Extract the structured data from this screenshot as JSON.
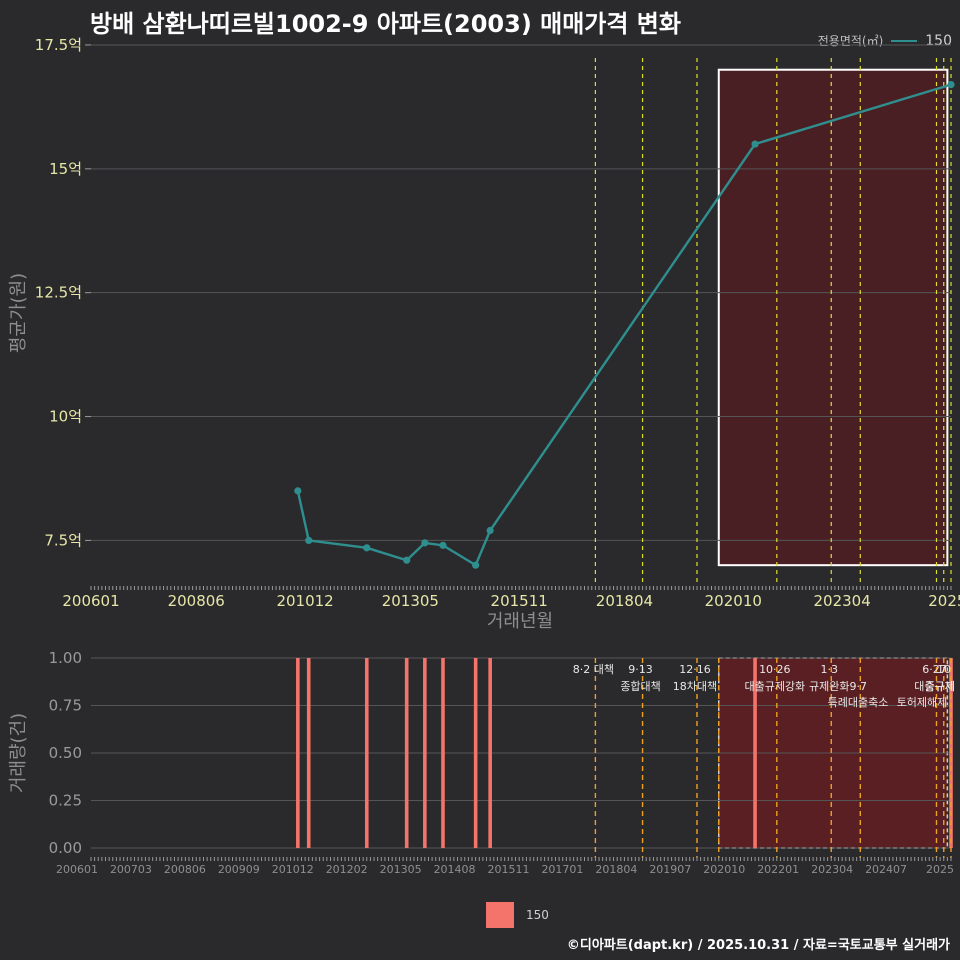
{
  "title": "방배 삼환나띠르빌1002-9 아파트(2003) 매매가격 변화",
  "legend": {
    "label": "전용면적(㎡)",
    "series_name": "150",
    "line_color": "#2f8f8f",
    "bar_color": "#f4736b"
  },
  "footer": "©디아파트(dapt.kr) / 2025.10.31 / 자료=국토교통부 실거래가",
  "chart_data": [
    {
      "type": "line",
      "title": "",
      "xlabel": "거래년월",
      "ylabel": "평균가(원)",
      "ylim": [
        6.6,
        17.6
      ],
      "yticks": [
        7.5,
        10,
        12.5,
        15,
        17.5
      ],
      "ytick_labels": [
        "7.5억",
        "10억",
        "12.5억",
        "15억",
        "17.5억"
      ],
      "xlim": [
        "2006-01",
        "2025-10"
      ],
      "xticks": [
        "2006-01",
        "2008-06",
        "2010-12",
        "2013-05",
        "2015-11",
        "2018-04",
        "2020-10",
        "2023-04",
        "2025-09"
      ],
      "xtick_labels": [
        "200601",
        "200806",
        "201012",
        "201305",
        "201511",
        "201804",
        "202010",
        "202304",
        "2025"
      ],
      "series": [
        {
          "name": "150",
          "x": [
            "2010-10",
            "2011-01",
            "2012-05",
            "2013-04",
            "2013-09",
            "2014-02",
            "2014-11",
            "2015-03",
            "2021-04",
            "2025-10"
          ],
          "values": [
            8.5,
            7.5,
            7.35,
            7.1,
            7.45,
            7.4,
            7.0,
            7.7,
            15.5,
            16.7
          ]
        }
      ],
      "highlight_range": [
        "2020-06",
        "2025-09"
      ],
      "policy_lines": [
        "2017-08",
        "2018-09",
        "2019-12",
        "2021-10",
        "2023-01",
        "2023-09",
        "2025-06",
        "2025-08",
        "2025-10"
      ]
    },
    {
      "type": "bar",
      "title": "",
      "xlabel": "",
      "ylabel": "거래량(건)",
      "ylim": [
        0,
        1
      ],
      "yticks": [
        0,
        0.25,
        0.5,
        0.75,
        1.0
      ],
      "ytick_labels": [
        "0.00",
        "0.25",
        "0.50",
        "0.75",
        "1.00"
      ],
      "xtick_labels": [
        "200601",
        "200703",
        "200806",
        "200909",
        "201012",
        "201202",
        "201305",
        "201408",
        "201511",
        "201701",
        "201804",
        "201907",
        "202010",
        "202201",
        "202304",
        "202407",
        "2025"
      ],
      "series": [
        {
          "name": "150",
          "x": [
            "2010-10",
            "2011-01",
            "2012-05",
            "2013-04",
            "2013-09",
            "2014-02",
            "2014-11",
            "2015-03",
            "2021-04",
            "2025-10"
          ],
          "values": [
            1,
            1,
            1,
            1,
            1,
            1,
            1,
            1,
            1,
            1
          ]
        }
      ],
      "highlight_range": [
        "2020-06",
        "2025-09"
      ],
      "policies": [
        {
          "date": "2017-08",
          "label": "8·2 대책",
          "label2": ""
        },
        {
          "date": "2018-09",
          "label": "9·13",
          "label2": "종합대책"
        },
        {
          "date": "2019-12",
          "label": "12·16",
          "label2": "18차대책"
        },
        {
          "date": "2020-06",
          "label": "",
          "label2": ""
        },
        {
          "date": "2021-10",
          "label": "10·26",
          "label2": "대출규제강화"
        },
        {
          "date": "2023-01",
          "label": "1·3",
          "label2": "규제완화"
        },
        {
          "date": "2023-09",
          "label": "",
          "label2": "9·7"
        },
        {
          "date": "2025-06",
          "label": "6·27",
          "label2": "대출규제"
        },
        {
          "date": "2025-08",
          "label": "",
          "label2": ""
        },
        {
          "date": "2025-10",
          "label": "",
          "label2": ""
        }
      ],
      "extra_labels": [
        "특례대출축소",
        "토허제해제",
        "10",
        "중규제"
      ]
    }
  ]
}
